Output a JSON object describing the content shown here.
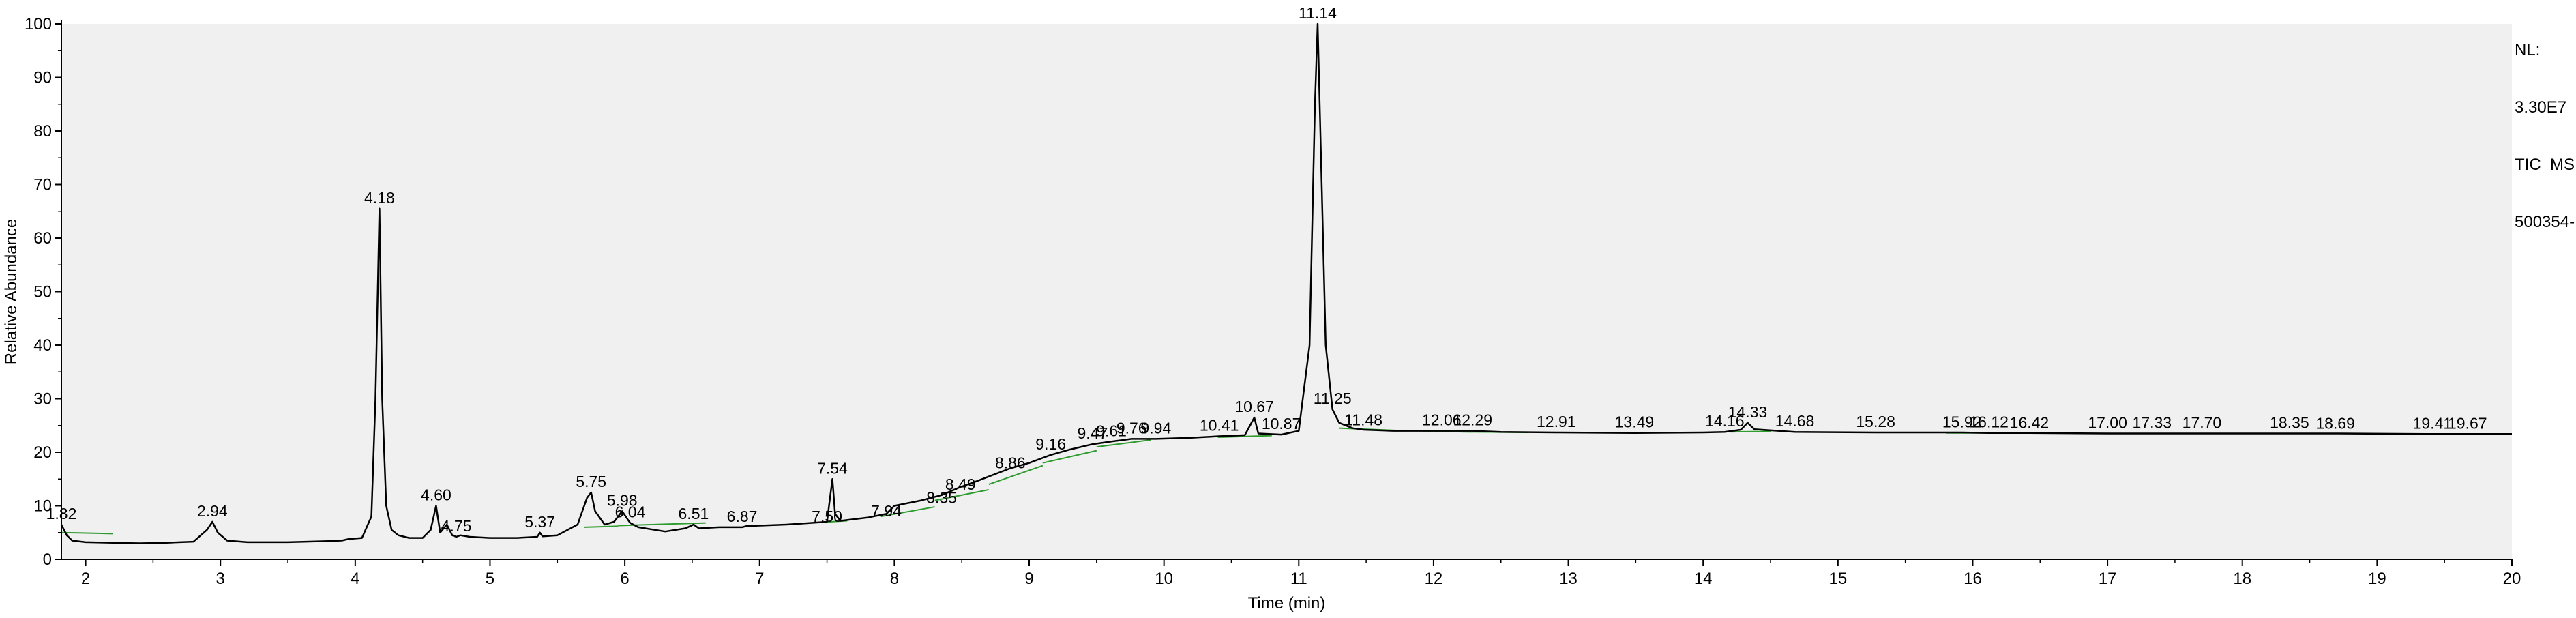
{
  "info": {
    "nl_label": "NL:",
    "nl_value": "3.30E7",
    "scan_filter": "TIC  MS",
    "sample": "500354-"
  },
  "chart_data": {
    "type": "line",
    "title": "",
    "xlabel": "Time (min)",
    "ylabel": "Relative Abundance",
    "xlim": [
      1.82,
      20.0
    ],
    "ylim": [
      0,
      100
    ],
    "xticks": [
      2,
      3,
      4,
      5,
      6,
      7,
      8,
      9,
      10,
      11,
      12,
      13,
      14,
      15,
      16,
      17,
      18,
      19,
      20
    ],
    "yticks": [
      0,
      10,
      20,
      30,
      40,
      50,
      60,
      70,
      80,
      90,
      100
    ],
    "grid": false,
    "legend": "none",
    "colors": {
      "trace": "#000000",
      "baseline": "#2e9b2e",
      "plot_bg": "#f0f0f0"
    },
    "series": [
      {
        "values_x": [
          1.82,
          1.86,
          1.9,
          2.0,
          2.2,
          2.4,
          2.6,
          2.8,
          2.9,
          2.94,
          2.98,
          3.05,
          3.2,
          3.5,
          3.8,
          3.9,
          3.95,
          4.05,
          4.12,
          4.15,
          4.18,
          4.2,
          4.23,
          4.27,
          4.32,
          4.4,
          4.5,
          4.56,
          4.6,
          4.63,
          4.68,
          4.72,
          4.75,
          4.78,
          4.85,
          5.0,
          5.2,
          5.35,
          5.37,
          5.39,
          5.5,
          5.65,
          5.72,
          5.75,
          5.78,
          5.85,
          5.92,
          5.98,
          6.02,
          6.04,
          6.1,
          6.3,
          6.45,
          6.51,
          6.55,
          6.7,
          6.87,
          6.9,
          7.2,
          7.5,
          7.52,
          7.54,
          7.56,
          7.6,
          7.8,
          7.94,
          8.0,
          8.2,
          8.35,
          8.49,
          8.6,
          8.86,
          9.0,
          9.16,
          9.3,
          9.47,
          9.61,
          9.76,
          9.94,
          10.2,
          10.41,
          10.6,
          10.67,
          10.7,
          10.87,
          11.0,
          11.08,
          11.12,
          11.14,
          11.17,
          11.2,
          11.25,
          11.3,
          11.4,
          11.48,
          11.7,
          12.06,
          12.29,
          12.5,
          12.91,
          13.49,
          14.0,
          14.16,
          14.28,
          14.33,
          14.38,
          14.68,
          15.28,
          15.92,
          16.12,
          16.42,
          17.0,
          17.33,
          17.7,
          18.35,
          18.69,
          19.41,
          19.67,
          20.0
        ],
        "values_y": [
          6.5,
          4.5,
          3.5,
          3.2,
          3.1,
          3.0,
          3.1,
          3.3,
          5.5,
          7.0,
          5.0,
          3.5,
          3.2,
          3.2,
          3.4,
          3.5,
          3.8,
          4.0,
          8.0,
          30.0,
          65.5,
          30.0,
          10.0,
          5.5,
          4.5,
          4.0,
          4.0,
          5.5,
          10.0,
          5.0,
          6.5,
          4.5,
          4.2,
          4.5,
          4.2,
          4.0,
          4.0,
          4.2,
          5.0,
          4.3,
          4.5,
          6.5,
          11.5,
          12.5,
          9.0,
          6.5,
          7.0,
          9.0,
          7.5,
          6.8,
          6.0,
          5.2,
          5.8,
          6.5,
          5.8,
          6.0,
          6.0,
          6.2,
          6.5,
          7.0,
          11.0,
          15.0,
          8.5,
          7.2,
          7.8,
          8.5,
          10.0,
          11.0,
          12.0,
          13.5,
          14.5,
          17.0,
          18.0,
          19.5,
          20.5,
          21.5,
          22.0,
          22.5,
          22.5,
          22.7,
          23.0,
          23.2,
          26.5,
          23.5,
          23.3,
          24.0,
          40.0,
          85.0,
          100.0,
          70.0,
          40.0,
          28.0,
          25.5,
          24.5,
          24.2,
          24.0,
          24.0,
          24.0,
          23.8,
          23.7,
          23.6,
          23.7,
          23.8,
          24.2,
          25.5,
          24.3,
          23.8,
          23.7,
          23.7,
          23.6,
          23.6,
          23.5,
          23.5,
          23.5,
          23.5,
          23.5,
          23.4,
          23.4,
          23.4
        ]
      }
    ],
    "peak_labels": [
      {
        "text": "1.82",
        "x": 1.82,
        "y": 6.5
      },
      {
        "text": "2.94",
        "x": 2.94,
        "y": 7.0
      },
      {
        "text": "4.18",
        "x": 4.18,
        "y": 65.5
      },
      {
        "text": "4.60",
        "x": 4.6,
        "y": 10.0
      },
      {
        "text": "4.75",
        "x": 4.75,
        "y": 4.2
      },
      {
        "text": "5.37",
        "x": 5.37,
        "y": 5.0
      },
      {
        "text": "5.75",
        "x": 5.75,
        "y": 12.5
      },
      {
        "text": "5.98",
        "x": 5.98,
        "y": 9.0
      },
      {
        "text": "6.04",
        "x": 6.04,
        "y": 6.8
      },
      {
        "text": "6.51",
        "x": 6.51,
        "y": 6.5
      },
      {
        "text": "6.87",
        "x": 6.87,
        "y": 6.0
      },
      {
        "text": "7.50",
        "x": 7.5,
        "y": 6.0
      },
      {
        "text": "7.54",
        "x": 7.54,
        "y": 15.0
      },
      {
        "text": "7.94",
        "x": 7.94,
        "y": 7.0
      },
      {
        "text": "8.35",
        "x": 8.35,
        "y": 9.5
      },
      {
        "text": "8.49",
        "x": 8.49,
        "y": 12.0
      },
      {
        "text": "8.86",
        "x": 8.86,
        "y": 16.0
      },
      {
        "text": "9.16",
        "x": 9.16,
        "y": 19.5
      },
      {
        "text": "9.47",
        "x": 9.47,
        "y": 21.5
      },
      {
        "text": "9.61",
        "x": 9.61,
        "y": 22.0
      },
      {
        "text": "9.76",
        "x": 9.76,
        "y": 22.5
      },
      {
        "text": "9.94",
        "x": 9.94,
        "y": 22.5
      },
      {
        "text": "10.41",
        "x": 10.41,
        "y": 23.0
      },
      {
        "text": "10.67",
        "x": 10.67,
        "y": 26.5
      },
      {
        "text": "10.87",
        "x": 10.87,
        "y": 23.3
      },
      {
        "text": "11.14",
        "x": 11.14,
        "y": 100.0
      },
      {
        "text": "11.25",
        "x": 11.25,
        "y": 28.0
      },
      {
        "text": "11.48",
        "x": 11.48,
        "y": 24.0
      },
      {
        "text": "12.06",
        "x": 12.06,
        "y": 24.0
      },
      {
        "text": "12.29",
        "x": 12.29,
        "y": 24.0
      },
      {
        "text": "12.91",
        "x": 12.91,
        "y": 23.7
      },
      {
        "text": "13.49",
        "x": 13.49,
        "y": 23.6
      },
      {
        "text": "14.16",
        "x": 14.16,
        "y": 23.8
      },
      {
        "text": "14.33",
        "x": 14.33,
        "y": 25.5
      },
      {
        "text": "14.68",
        "x": 14.68,
        "y": 23.8
      },
      {
        "text": "15.28",
        "x": 15.28,
        "y": 23.7
      },
      {
        "text": "15.92",
        "x": 15.92,
        "y": 23.6
      },
      {
        "text": "16.12",
        "x": 16.12,
        "y": 23.6
      },
      {
        "text": "16.42",
        "x": 16.42,
        "y": 23.5
      },
      {
        "text": "17.00",
        "x": 17.0,
        "y": 23.5
      },
      {
        "text": "17.33",
        "x": 17.33,
        "y": 23.5
      },
      {
        "text": "17.70",
        "x": 17.7,
        "y": 23.5
      },
      {
        "text": "18.35",
        "x": 18.35,
        "y": 23.5
      },
      {
        "text": "18.69",
        "x": 18.69,
        "y": 23.4
      },
      {
        "text": "19.41",
        "x": 19.41,
        "y": 23.4
      },
      {
        "text": "19.67",
        "x": 19.67,
        "y": 23.4
      }
    ],
    "integration_baselines": [
      [
        1.82,
        5.0,
        2.2,
        4.8
      ],
      [
        5.7,
        6.0,
        5.95,
        6.2
      ],
      [
        5.95,
        6.3,
        6.6,
        6.8
      ],
      [
        7.45,
        6.9,
        7.65,
        7.2
      ],
      [
        7.9,
        8.0,
        8.3,
        9.8
      ],
      [
        8.3,
        11.0,
        8.7,
        13.0
      ],
      [
        8.7,
        14.0,
        9.1,
        17.5
      ],
      [
        9.1,
        18.0,
        9.5,
        20.3
      ],
      [
        9.5,
        21.0,
        9.9,
        22.3
      ],
      [
        10.4,
        22.8,
        10.8,
        23.1
      ],
      [
        11.3,
        24.5,
        11.8,
        24.0
      ],
      [
        11.9,
        24.0,
        12.4,
        23.8
      ],
      [
        12.2,
        23.8,
        12.7,
        23.7
      ],
      [
        14.2,
        23.8,
        14.5,
        23.9
      ],
      [
        15.8,
        23.6,
        16.2,
        23.6
      ]
    ]
  }
}
